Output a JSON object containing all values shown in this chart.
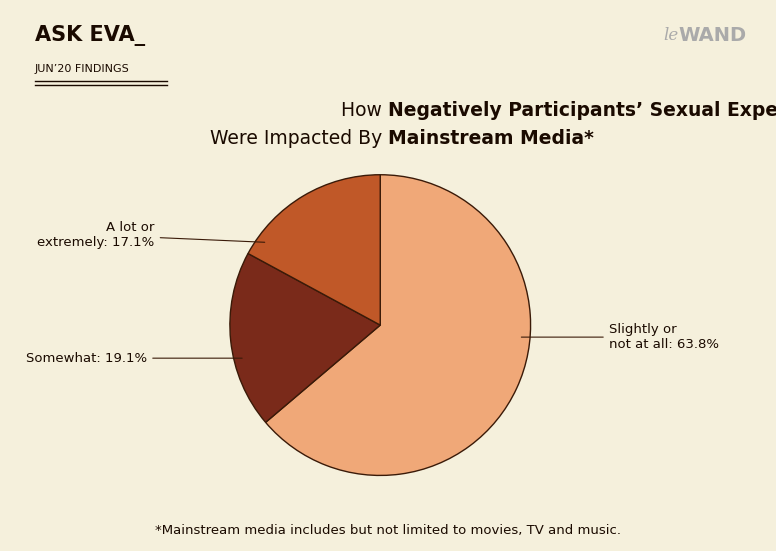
{
  "background_color": "#f5f0dc",
  "header_left": "ASK EVA_",
  "header_sub": "JUN’20 FINDINGS",
  "header_right_italic": "le",
  "header_right_bold": "WAND",
  "title_line1_normal": "How ",
  "title_line1_bold": "Negatively Participants’ Sexual Experiences",
  "title_line2_normal": "Were Impacted By ",
  "title_line2_bold": "Mainstream Media*",
  "footer": "*Mainstream media includes but not limited to movies, TV and music.",
  "slices": [
    63.8,
    19.1,
    17.1
  ],
  "slice_colors": [
    "#f0a878",
    "#7a2a1a",
    "#c05828"
  ],
  "startangle": 90,
  "pie_edge_color": "#3a1a08",
  "pie_linewidth": 1.0,
  "fig_width": 7.76,
  "fig_height": 5.51,
  "dpi": 100
}
